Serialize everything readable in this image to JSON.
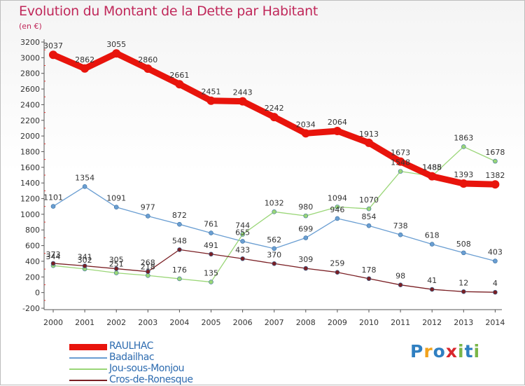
{
  "header": {
    "title": "Evolution du Montant de la Dette par Habitant",
    "unit": "(en €)"
  },
  "logo": {
    "letters": [
      "P",
      "r",
      "o",
      "x",
      "i",
      "t",
      "i"
    ],
    "colors": [
      "#2f7fc1",
      "#f1a21c",
      "#2f7fc1",
      "#d9262c",
      "#7ab648",
      "#2f7fc1",
      "#7ab648"
    ]
  },
  "chart_data": {
    "type": "line",
    "title": "Evolution du Montant de la Dette par Habitant",
    "xlabel": "",
    "ylabel": "(en €)",
    "x": [
      2000,
      2001,
      2002,
      2003,
      2004,
      2005,
      2006,
      2007,
      2008,
      2009,
      2010,
      2011,
      2012,
      2013,
      2014
    ],
    "ylim": [
      -200,
      3200
    ],
    "yticks": [
      -200,
      0,
      200,
      400,
      600,
      800,
      1000,
      1200,
      1400,
      1600,
      1800,
      2000,
      2200,
      2400,
      2600,
      2800,
      3000,
      3200
    ],
    "grid": false,
    "legend": "bottom-left",
    "series": [
      {
        "name": "RAULHAC",
        "color": "#e8140c",
        "values": [
          3037,
          2862,
          3055,
          2860,
          2661,
          2451,
          2443,
          2242,
          2034,
          2064,
          1913,
          1673,
          1485,
          1393,
          1382
        ],
        "labels": [
          "3037",
          "2862",
          "3055",
          "2860",
          "2661",
          "2451",
          "2443",
          "2242",
          "2034",
          "2064",
          "1913",
          "1673",
          "1485",
          "1393",
          "1382"
        ]
      },
      {
        "name": "Badailhac",
        "color": "#6a9ed2",
        "values": [
          1101,
          1354,
          1091,
          977,
          872,
          761,
          655,
          562,
          699,
          946,
          854,
          738,
          618,
          508,
          403
        ],
        "labels": [
          "1101",
          "1354",
          "1091",
          "977",
          "872",
          "761",
          "655",
          "562",
          "699",
          "946",
          "854",
          "738",
          "618",
          "508",
          "403"
        ]
      },
      {
        "name": "Jou-sous-Monjou",
        "color": "#9ad677",
        "values": [
          344,
          302,
          251,
          218,
          176,
          135,
          744,
          1032,
          980,
          1094,
          1070,
          1548,
          1488,
          1863,
          1678
        ],
        "labels": [
          "344",
          "302",
          "251",
          "218",
          "176",
          "135",
          "744",
          "1032",
          "980",
          "1094",
          "1070",
          "1548",
          "1488",
          "1863",
          "1678"
        ]
      },
      {
        "name": "Cros-de-Ronesque",
        "color": "#7a1f24",
        "values": [
          373,
          341,
          305,
          268,
          548,
          491,
          433,
          370,
          309,
          259,
          178,
          98,
          41,
          12,
          4
        ],
        "labels": [
          "373",
          "341",
          "305",
          "268",
          "548",
          "491",
          "433",
          "370",
          "309",
          "259",
          "178",
          "98",
          "41",
          "12",
          "4"
        ]
      }
    ]
  }
}
